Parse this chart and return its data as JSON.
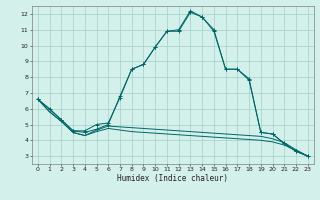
{
  "title": "",
  "xlabel": "Humidex (Indice chaleur)",
  "bg_color": "#d4f0eb",
  "grid_color": "#a0d0c8",
  "line_color": "#006666",
  "xlim": [
    -0.5,
    23.5
  ],
  "ylim": [
    2.5,
    12.5
  ],
  "xticks": [
    0,
    1,
    2,
    3,
    4,
    5,
    6,
    7,
    8,
    9,
    10,
    11,
    12,
    13,
    14,
    15,
    16,
    17,
    18,
    19,
    20,
    21,
    22,
    23
  ],
  "yticks": [
    3,
    4,
    5,
    6,
    7,
    8,
    9,
    10,
    11,
    12
  ],
  "series": [
    {
      "x": [
        0,
        1,
        2,
        3,
        4,
        5,
        6,
        7,
        8,
        9,
        10,
        11,
        12,
        13,
        14,
        15,
        16,
        17,
        18,
        19,
        20,
        21,
        22,
        23
      ],
      "y": [
        6.6,
        6.0,
        5.3,
        4.6,
        4.6,
        5.0,
        5.1,
        6.7,
        8.5,
        8.8,
        9.9,
        10.9,
        11.0,
        12.2,
        11.8,
        11.0,
        8.5,
        8.5,
        7.9,
        4.5,
        4.4,
        3.8,
        3.3,
        3.0
      ],
      "marker": "+"
    },
    {
      "x": [
        0,
        1,
        2,
        3,
        4,
        5,
        6,
        7,
        8,
        9,
        10,
        11,
        12,
        13,
        14,
        15,
        16,
        17,
        18,
        19,
        20,
        21,
        22,
        23
      ],
      "y": [
        6.6,
        5.8,
        5.2,
        4.5,
        4.3,
        4.65,
        4.9,
        4.85,
        4.8,
        4.75,
        4.7,
        4.65,
        4.6,
        4.55,
        4.5,
        4.45,
        4.4,
        4.35,
        4.3,
        4.25,
        4.1,
        3.85,
        3.4,
        3.0
      ],
      "marker": null
    },
    {
      "x": [
        0,
        2,
        3,
        4,
        5,
        6,
        7,
        8,
        9,
        10,
        11,
        12,
        13,
        14,
        15,
        16,
        17,
        18,
        19,
        20,
        21,
        22,
        23
      ],
      "y": [
        6.6,
        5.3,
        4.6,
        4.5,
        4.7,
        5.0,
        6.8,
        8.5,
        8.8,
        9.9,
        10.9,
        10.9,
        12.1,
        11.8,
        10.9,
        8.5,
        8.5,
        7.8,
        4.5,
        4.4,
        3.8,
        3.3,
        3.0
      ],
      "marker": "+"
    },
    {
      "x": [
        0,
        1,
        2,
        3,
        4,
        5,
        6,
        7,
        8,
        9,
        10,
        11,
        12,
        13,
        14,
        15,
        16,
        17,
        18,
        19,
        20,
        21,
        22,
        23
      ],
      "y": [
        6.6,
        5.8,
        5.2,
        4.5,
        4.3,
        4.55,
        4.75,
        4.65,
        4.55,
        4.5,
        4.45,
        4.4,
        4.35,
        4.3,
        4.25,
        4.2,
        4.15,
        4.1,
        4.05,
        4.0,
        3.9,
        3.7,
        3.35,
        3.0
      ],
      "marker": null
    }
  ]
}
